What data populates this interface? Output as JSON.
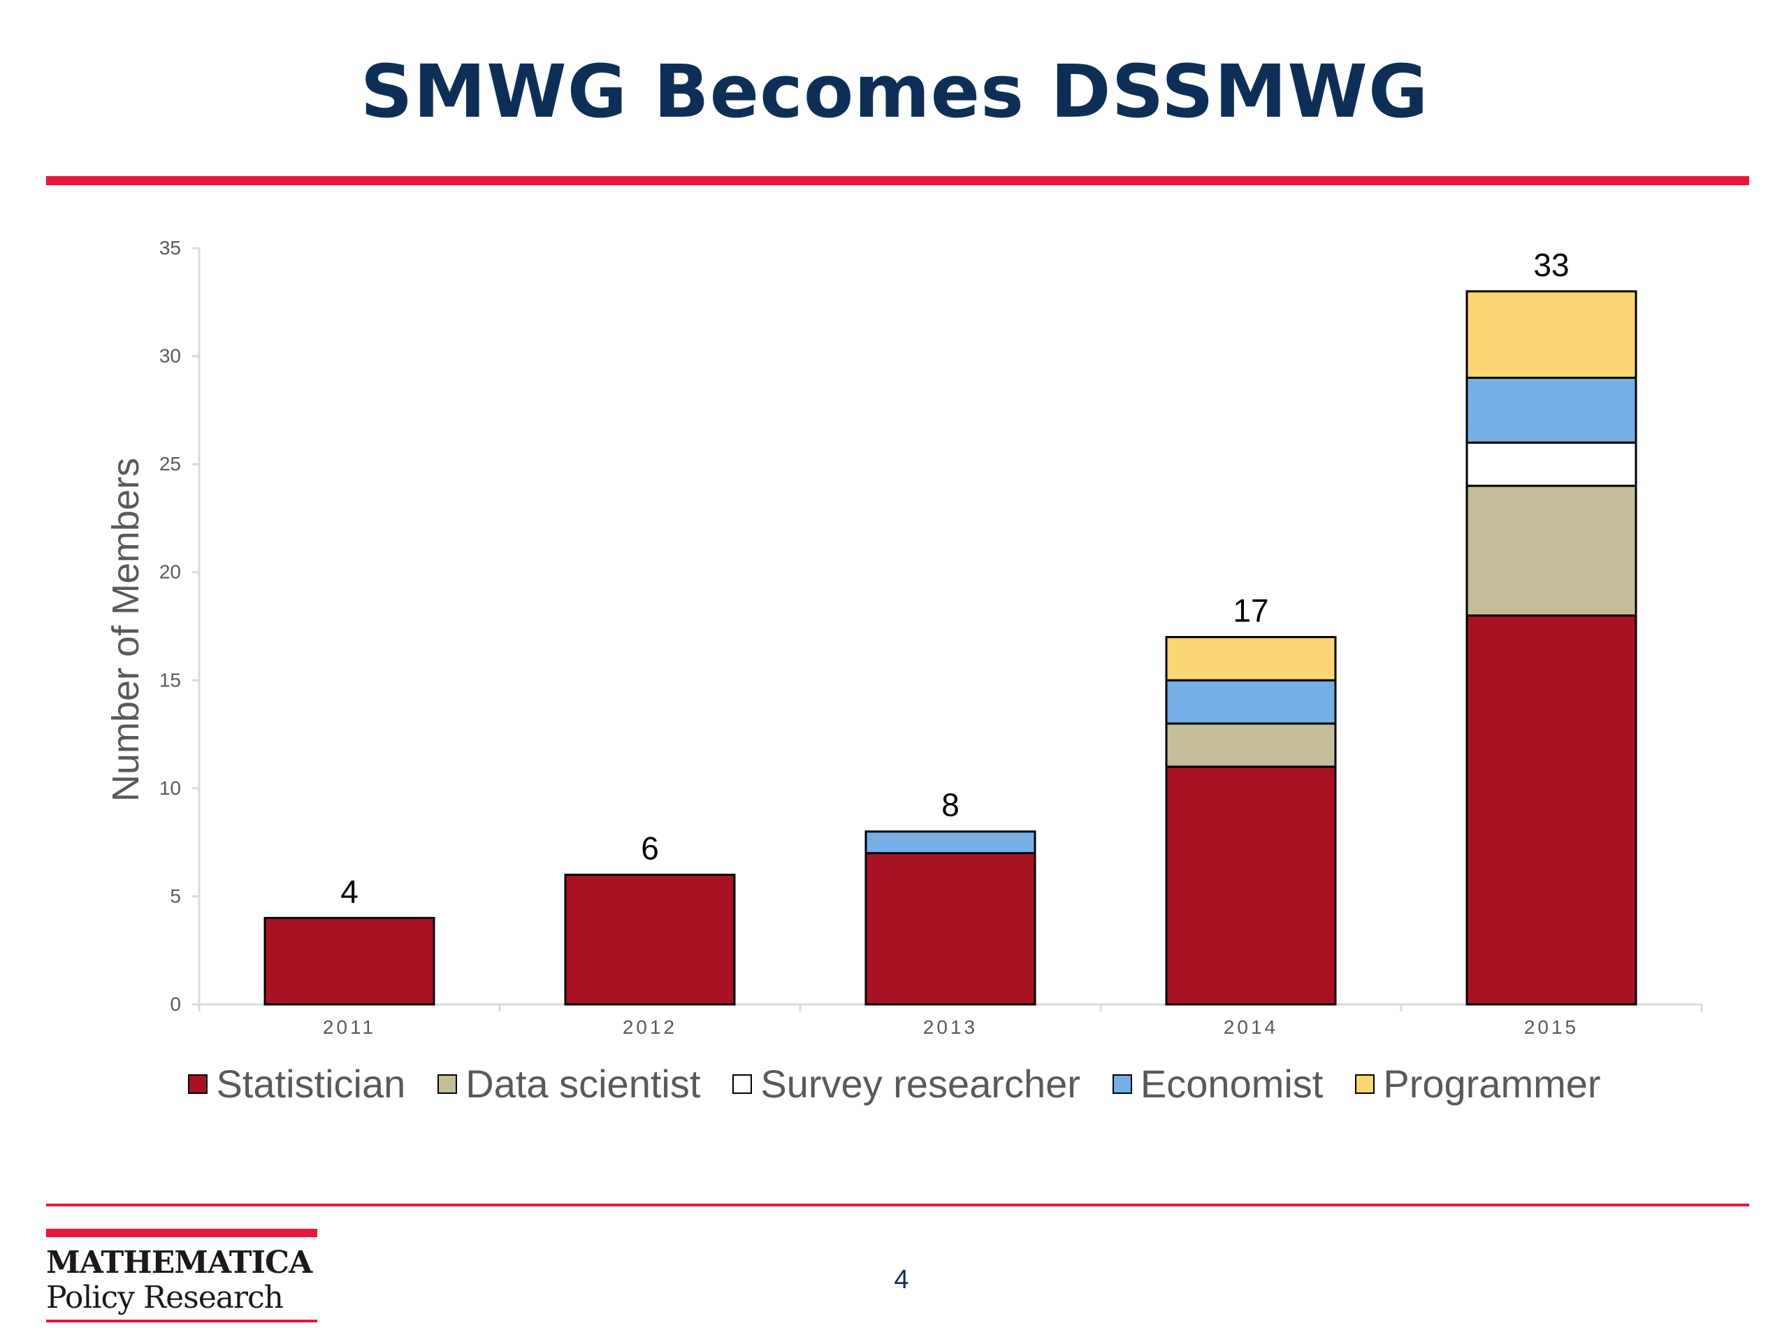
{
  "slide": {
    "title": "SMWG Becomes DSSMWG",
    "page_number": "4"
  },
  "logo": {
    "line1": "MATHEMATICA",
    "line2": "Policy Research"
  },
  "colors": {
    "accent_red": "#e8163a",
    "title_navy": "#0d2f57"
  },
  "chart_data": {
    "type": "bar",
    "stacked": true,
    "title": "",
    "xlabel": "",
    "ylabel": "Number of Members",
    "ylim": [
      0,
      35
    ],
    "yticks": [
      0,
      5,
      10,
      15,
      20,
      25,
      30,
      35
    ],
    "grid": false,
    "legend_position": "bottom",
    "categories": [
      "2011",
      "2012",
      "2013",
      "2014",
      "2015"
    ],
    "series": [
      {
        "name": "Statistician",
        "color": "#a81224",
        "values": [
          4,
          6,
          7,
          11,
          18
        ]
      },
      {
        "name": "Data scientist",
        "color": "#c4bd97",
        "values": [
          0,
          0,
          0,
          2,
          6
        ]
      },
      {
        "name": "Survey researcher",
        "color": "#ffffff",
        "values": [
          0,
          0,
          0,
          0,
          2
        ]
      },
      {
        "name": "Economist",
        "color": "#76aee6",
        "values": [
          0,
          0,
          1,
          2,
          3
        ]
      },
      {
        "name": "Programmer",
        "color": "#fcd574",
        "values": [
          0,
          0,
          0,
          2,
          4
        ]
      }
    ],
    "totals": [
      "4",
      "6",
      "8",
      "17",
      "33"
    ]
  }
}
